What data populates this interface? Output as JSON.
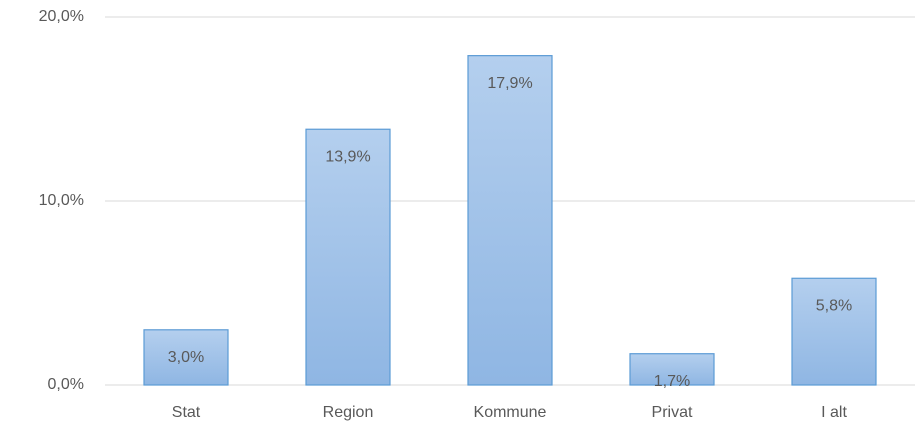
{
  "chart_data": {
    "type": "bar",
    "categories": [
      "Stat",
      "Region",
      "Kommune",
      "Privat",
      "I alt"
    ],
    "values": [
      3.0,
      13.9,
      17.9,
      1.7,
      5.8
    ],
    "value_labels": [
      "3,0%",
      "13,9%",
      "17,9%",
      "1,7%",
      "5,8%"
    ],
    "color": "#9dc3e6",
    "ylim": [
      0,
      20
    ],
    "yticks": [
      {
        "value": 0,
        "label": "0,0%"
      },
      {
        "value": 10,
        "label": "10,0%"
      },
      {
        "value": 20,
        "label": "20,0%"
      }
    ],
    "grid": true
  }
}
